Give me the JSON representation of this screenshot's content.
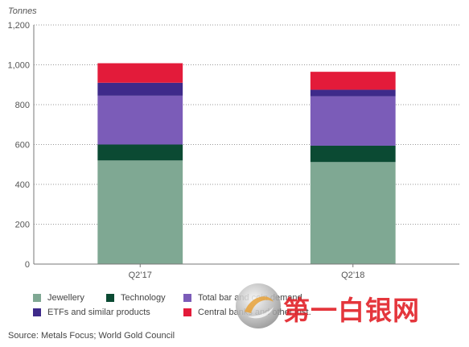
{
  "chart_data": {
    "type": "bar",
    "stacked": true,
    "unit_label": "Tonnes",
    "categories": [
      "Q2’17",
      "Q2’18"
    ],
    "series": [
      {
        "name": "Jewellery",
        "color": "#7fa893",
        "values": [
          520,
          512
        ]
      },
      {
        "name": "Technology",
        "color": "#0b4a33",
        "values": [
          80,
          82
        ]
      },
      {
        "name": "Total bar and coin demand",
        "color": "#7b5cb8",
        "values": [
          245,
          248
        ]
      },
      {
        "name": "ETFs and similar products",
        "color": "#3e2a8a",
        "values": [
          65,
          33
        ]
      },
      {
        "name": "Central banks and other inst.",
        "color": "#e31b3a",
        "values": [
          98,
          90
        ]
      }
    ],
    "ylim": [
      0,
      1200
    ],
    "yticks": [
      "0",
      "200",
      "400",
      "600",
      "800",
      "1,000",
      "1,200"
    ],
    "grid": "horizontal-dotted",
    "legend_position": "bottom"
  },
  "source": "Source: Metals Focus; World Gold Council",
  "watermark": {
    "text": "第一白银网",
    "logo_icon": "silver-swirl-logo-icon"
  }
}
